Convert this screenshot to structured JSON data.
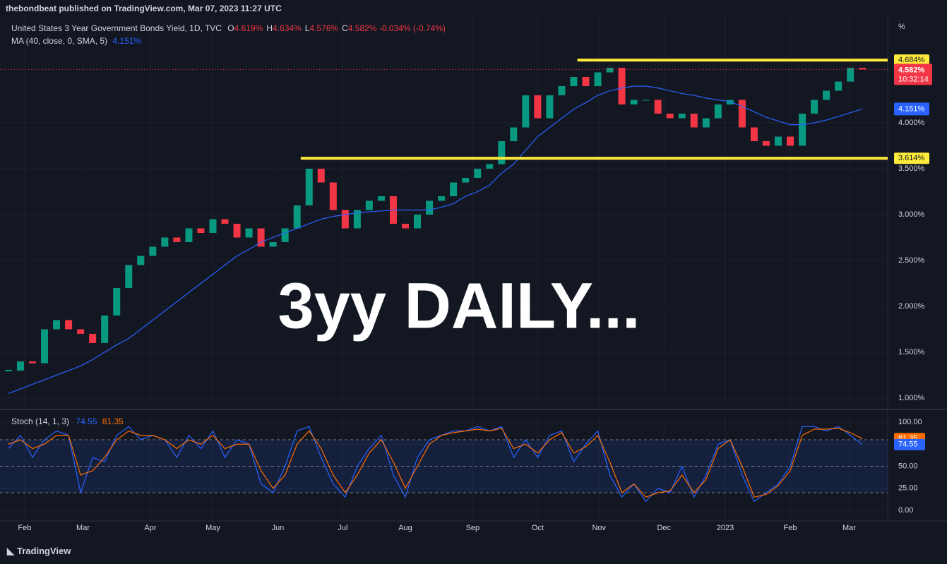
{
  "header": {
    "byline": "thebondbeat published on TradingView.com, Mar 07, 2023 11:27 UTC"
  },
  "overlay": "3yy DAILY...",
  "footer": "TradingView",
  "chart_data": [
    {
      "type": "candlestick",
      "title": "United States 3 Year Government Bonds Yield, 1D, TVC",
      "ohlc": [
        {
          "key": "O",
          "value": "4.619%"
        },
        {
          "key": "H",
          "value": "4.634%"
        },
        {
          "key": "L",
          "value": "4.576%"
        },
        {
          "key": "C",
          "value": "4.582%"
        }
      ],
      "change": "-0.034% (-0.74%)",
      "unit": "%",
      "series": [
        {
          "color_up": "#089981",
          "color_down": "#f23645",
          "values": [
            1.3,
            1.4,
            1.38,
            1.75,
            1.85,
            1.75,
            1.7,
            1.6,
            1.9,
            2.2,
            2.45,
            2.55,
            2.65,
            2.75,
            2.7,
            2.85,
            2.8,
            2.95,
            2.9,
            2.75,
            2.85,
            2.65,
            2.7,
            2.85,
            3.1,
            3.5,
            3.35,
            3.05,
            2.85,
            3.05,
            3.15,
            3.2,
            2.9,
            2.85,
            3.0,
            3.15,
            3.2,
            3.35,
            3.4,
            3.5,
            3.55,
            3.8,
            3.95,
            4.3,
            4.05,
            4.3,
            4.4,
            4.5,
            4.4,
            4.55,
            4.6,
            4.2,
            4.25,
            4.25,
            4.1,
            4.05,
            4.1,
            3.95,
            4.05,
            4.2,
            4.25,
            3.95,
            3.8,
            3.75,
            3.85,
            3.75,
            4.1,
            4.25,
            4.35,
            4.45,
            4.6,
            4.582
          ]
        },
        {
          "name": "MA (40, close, 0, SMA, 5)",
          "color": "#2962ff",
          "value_label": "4.151%",
          "values": [
            1.05,
            1.1,
            1.15,
            1.2,
            1.25,
            1.3,
            1.35,
            1.42,
            1.5,
            1.58,
            1.65,
            1.75,
            1.85,
            1.95,
            2.05,
            2.15,
            2.25,
            2.35,
            2.45,
            2.55,
            2.62,
            2.7,
            2.75,
            2.8,
            2.85,
            2.9,
            2.95,
            2.98,
            3.0,
            3.02,
            3.03,
            3.04,
            3.05,
            3.05,
            3.05,
            3.05,
            3.08,
            3.12,
            3.2,
            3.25,
            3.32,
            3.45,
            3.55,
            3.7,
            3.85,
            3.95,
            4.05,
            4.15,
            4.22,
            4.3,
            4.35,
            4.38,
            4.4,
            4.4,
            4.38,
            4.35,
            4.32,
            4.3,
            4.27,
            4.25,
            4.23,
            4.18,
            4.12,
            4.06,
            4.02,
            3.98,
            3.98,
            4.0,
            4.03,
            4.07,
            4.11,
            4.151
          ]
        }
      ],
      "last_price": {
        "value": 4.582,
        "label": "4.582%",
        "countdown": "10:32:14",
        "color": "#f23645"
      },
      "levels": [
        {
          "value": 4.684,
          "label": "4.684%",
          "start": 47.3
        },
        {
          "value": 3.614,
          "label": "3.614%",
          "start": 24.3
        }
      ],
      "level_color": "#ffeb3b",
      "xlim": [
        -0.7,
        73.1
      ],
      "xticks": [
        {
          "value": 1.35,
          "label": "Feb"
        },
        {
          "value": 6.2,
          "label": "Mar"
        },
        {
          "value": 11.8,
          "label": "Apr"
        },
        {
          "value": 17,
          "label": "May"
        },
        {
          "value": 22.4,
          "label": "Jun"
        },
        {
          "value": 27.8,
          "label": "Jul"
        },
        {
          "value": 33,
          "label": "Aug"
        },
        {
          "value": 38.6,
          "label": "Sep"
        },
        {
          "value": 44,
          "label": "Oct"
        },
        {
          "value": 49.1,
          "label": "Nov"
        },
        {
          "value": 54.5,
          "label": "Dec"
        },
        {
          "value": 59.6,
          "label": "2023"
        },
        {
          "value": 65,
          "label": "Feb"
        },
        {
          "value": 69.9,
          "label": "Mar"
        }
      ],
      "ylim": [
        0.915,
        5.185
      ],
      "yticks": [
        {
          "value": 1,
          "label": "1.000%"
        },
        {
          "value": 1.5,
          "label": "1.500%"
        },
        {
          "value": 2,
          "label": "2.000%"
        },
        {
          "value": 2.5,
          "label": "2.500%"
        },
        {
          "value": 3,
          "label": "3.000%"
        },
        {
          "value": 3.5,
          "label": "3.500%"
        },
        {
          "value": 4,
          "label": "4.000%"
        }
      ],
      "grid": true
    },
    {
      "type": "line",
      "title": "Stoch (14, 1, 3)",
      "series": [
        {
          "name": "%K",
          "color": "#2962ff",
          "value_label": "74.55",
          "values": [
            70,
            85,
            60,
            80,
            90,
            85,
            20,
            60,
            55,
            85,
            95,
            80,
            85,
            80,
            60,
            85,
            70,
            90,
            60,
            80,
            75,
            30,
            20,
            50,
            90,
            95,
            60,
            30,
            15,
            50,
            70,
            85,
            40,
            15,
            60,
            80,
            85,
            90,
            90,
            95,
            90,
            95,
            60,
            80,
            60,
            85,
            90,
            55,
            75,
            90,
            40,
            15,
            30,
            10,
            25,
            20,
            50,
            15,
            40,
            75,
            80,
            40,
            10,
            20,
            30,
            50,
            95,
            95,
            90,
            95,
            85,
            74.55
          ]
        },
        {
          "name": "%D",
          "color": "#ff6d00",
          "value_label": "81.35",
          "values": [
            75,
            80,
            70,
            75,
            85,
            85,
            40,
            45,
            60,
            80,
            90,
            85,
            85,
            80,
            70,
            80,
            75,
            85,
            70,
            75,
            75,
            45,
            25,
            40,
            75,
            90,
            70,
            40,
            20,
            40,
            65,
            80,
            55,
            25,
            50,
            75,
            85,
            88,
            90,
            92,
            90,
            93,
            70,
            75,
            65,
            80,
            88,
            65,
            72,
            85,
            55,
            20,
            30,
            15,
            20,
            22,
            40,
            20,
            35,
            70,
            80,
            50,
            15,
            18,
            28,
            45,
            85,
            92,
            92,
            93,
            88,
            81.35
          ]
        }
      ],
      "bands": [
        20,
        50,
        80
      ],
      "ylim": [
        -9.6,
        110.4
      ],
      "yticks": [
        {
          "value": 0,
          "label": "0.00"
        },
        {
          "value": 25,
          "label": "25.00"
        },
        {
          "value": 50,
          "label": "50.00"
        },
        {
          "value": 75,
          "label": "75.00"
        },
        {
          "value": 100,
          "label": "100.00"
        }
      ],
      "grid": true
    }
  ]
}
